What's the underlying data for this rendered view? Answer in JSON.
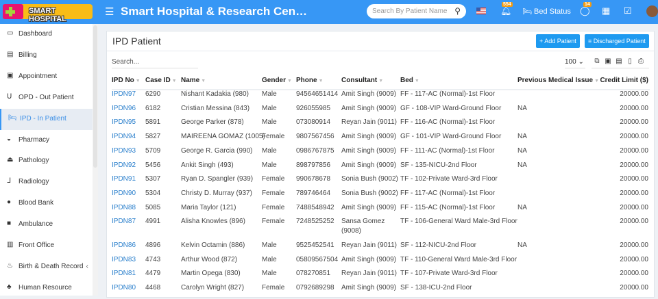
{
  "header": {
    "logo_text": "SMART HOSPITAL",
    "title": "Smart Hospital & Research Cen…",
    "search_placeholder": "Search By Patient Name",
    "notif_count": "554",
    "bed_status": "Bed Status",
    "whatsapp_count": "14"
  },
  "sidebar": {
    "items": [
      {
        "label": "Dashboard",
        "icon": "monitor-icon"
      },
      {
        "label": "Billing",
        "icon": "billing-icon"
      },
      {
        "label": "Appointment",
        "icon": "calendar-check-icon"
      },
      {
        "label": "OPD - Out Patient",
        "icon": "stethoscope-icon"
      },
      {
        "label": "IPD - In Patient",
        "icon": "bed-icon",
        "active": true
      },
      {
        "label": "Pharmacy",
        "icon": "mortar-pestle-icon"
      },
      {
        "label": "Pathology",
        "icon": "flask-icon"
      },
      {
        "label": "Radiology",
        "icon": "microscope-icon"
      },
      {
        "label": "Blood Bank",
        "icon": "tint-icon"
      },
      {
        "label": "Ambulance",
        "icon": "ambulance-icon"
      },
      {
        "label": "Front Office",
        "icon": "building-icon"
      },
      {
        "label": "Birth & Death Record",
        "icon": "birthday-cake-icon",
        "has_children": true
      },
      {
        "label": "Human Resource",
        "icon": "sitemap-icon"
      }
    ]
  },
  "panel": {
    "title": "IPD Patient",
    "add_button": "+ Add Patient",
    "discharged_button": "≡ Discharged Patient",
    "search_placeholder": "Search...",
    "page_size": "100"
  },
  "table": {
    "columns": [
      "IPD No",
      "Case ID",
      "Name",
      "Gender",
      "Phone",
      "Consultant",
      "Bed",
      "Previous Medical Issue",
      "Credit Limit ($)"
    ],
    "rows": [
      [
        "IPDN97",
        "6290",
        "Nishant Kadakia (980)",
        "Male",
        "94564651414",
        "Amit Singh (9009)",
        "FF - 117-AC (Normal)-1st Floor",
        "",
        "20000.00"
      ],
      [
        "IPDN96",
        "6182",
        "Cristian Messina (843)",
        "Male",
        "926055985",
        "Amit Singh (9009)",
        "GF - 108-VIP Ward-Ground Floor",
        "NA",
        "20000.00"
      ],
      [
        "IPDN95",
        "5891",
        "George Parker (878)",
        "Male",
        "073080914",
        "Reyan Jain (9011)",
        "FF - 116-AC (Normal)-1st Floor",
        "",
        "20000.00"
      ],
      [
        "IPDN94",
        "5827",
        "MAIREENA GOMAZ (1005)",
        "Female",
        "9807567456",
        "Amit Singh (9009)",
        "GF - 101-VIP Ward-Ground Floor",
        "NA",
        "20000.00"
      ],
      [
        "IPDN93",
        "5709",
        "George R. Garcia (990)",
        "Male",
        "0986767875",
        "Amit Singh (9009)",
        "FF - 111-AC (Normal)-1st Floor",
        "NA",
        "20000.00"
      ],
      [
        "IPDN92",
        "5456",
        "Ankit Singh (493)",
        "Male",
        "898797856",
        "Amit Singh (9009)",
        "SF - 135-NICU-2nd Floor",
        "NA",
        "20000.00"
      ],
      [
        "IPDN91",
        "5307",
        "Ryan D. Spangler (939)",
        "Female",
        "990678678",
        "Sonia Bush (9002)",
        "TF - 102-Private Ward-3rd Floor",
        "",
        "20000.00"
      ],
      [
        "IPDN90",
        "5304",
        "Christy D. Murray (937)",
        "Female",
        "789746464",
        "Sonia Bush (9002)",
        "FF - 117-AC (Normal)-1st Floor",
        "",
        "20000.00"
      ],
      [
        "IPDN88",
        "5085",
        "Maria Taylor (121)",
        "Female",
        "7488548942",
        "Amit Singh (9009)",
        "FF - 115-AC (Normal)-1st Floor",
        "NA",
        "20000.00"
      ],
      [
        "IPDN87",
        "4991",
        "Alisha Knowles (896)",
        "Female",
        "7248525252",
        "Sansa Gomez (9008)",
        "TF - 106-General Ward Male-3rd Floor",
        "",
        "20000.00"
      ],
      [
        "IPDN86",
        "4896",
        "Kelvin Octamin (886)",
        "Male",
        "9525452541",
        "Reyan Jain (9011)",
        "SF - 112-NICU-2nd Floor",
        "NA",
        "20000.00"
      ],
      [
        "IPDN83",
        "4743",
        "Arthur Wood (872)",
        "Male",
        "05809567504",
        "Amit Singh (9009)",
        "TF - 110-General Ward Male-3rd Floor",
        "",
        "20000.00"
      ],
      [
        "IPDN81",
        "4479",
        "Martin Opega (830)",
        "Male",
        "078270851",
        "Reyan Jain (9011)",
        "TF - 107-Private Ward-3rd Floor",
        "",
        "20000.00"
      ],
      [
        "IPDN80",
        "4468",
        "Carolyn Wright (827)",
        "Female",
        "0792689298",
        "Amit Singh (9009)",
        "SF - 138-ICU-2nd Floor",
        "",
        "20000.00"
      ]
    ]
  }
}
